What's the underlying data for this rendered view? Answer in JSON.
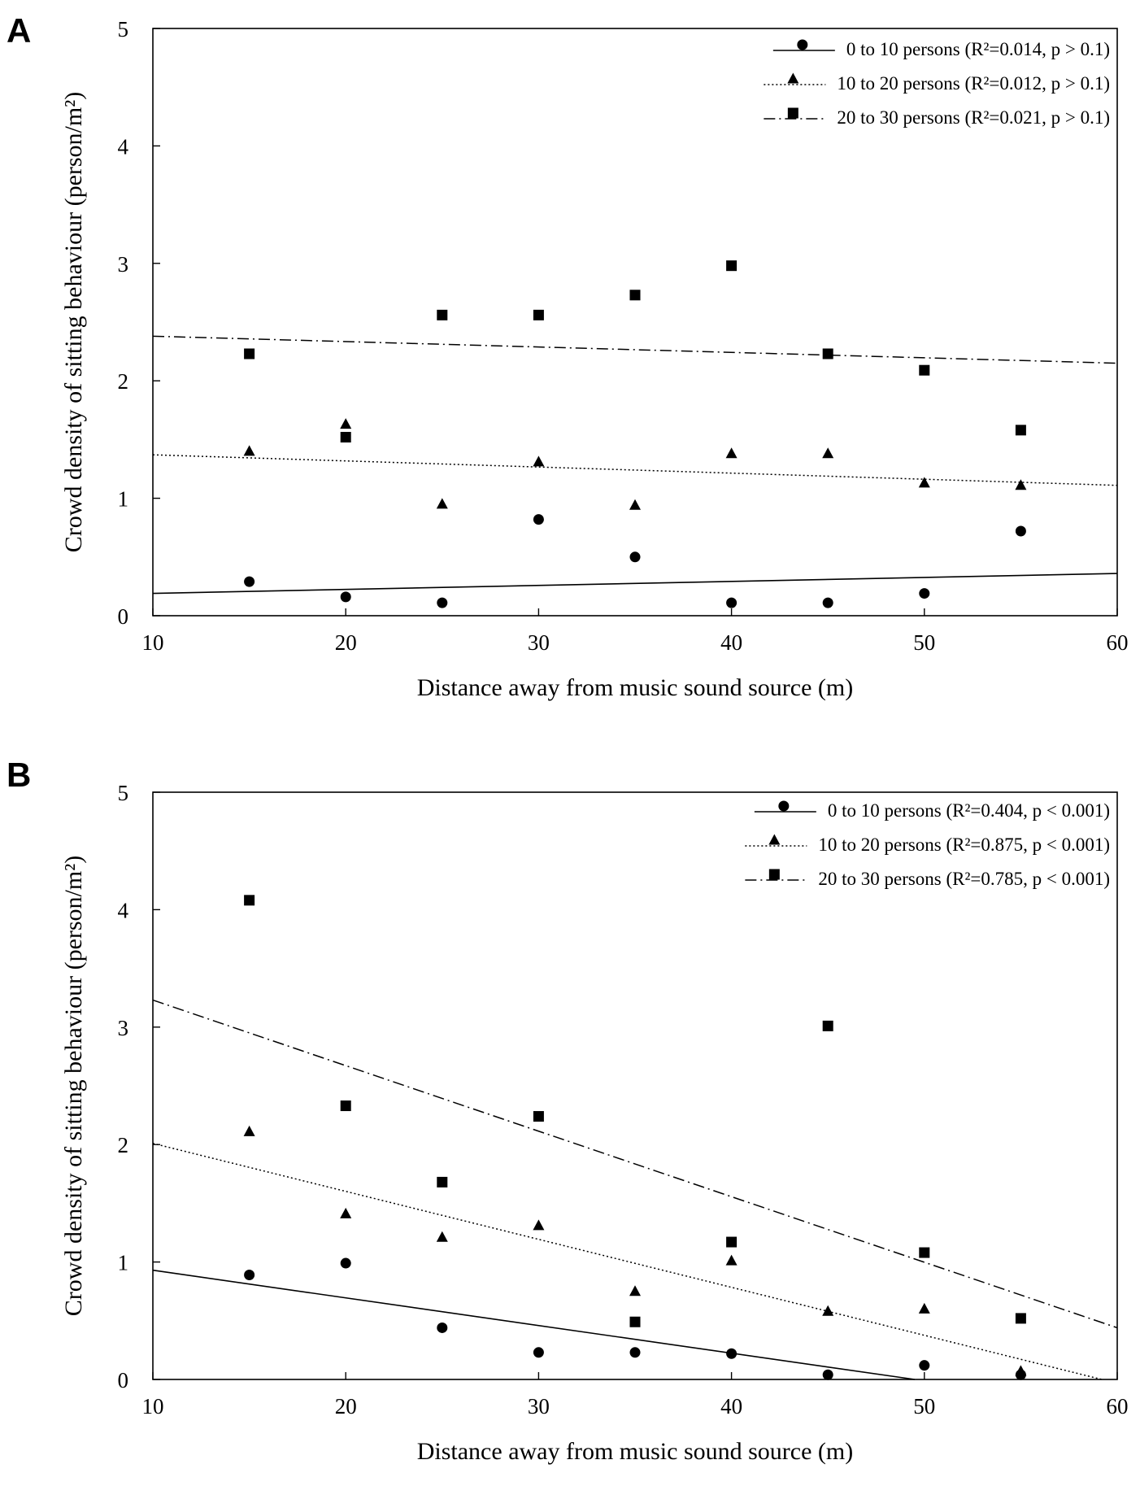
{
  "chart_data": [
    {
      "panel": "A",
      "type": "scatter",
      "xlabel": "Distance away from music sound source (m)",
      "ylabel": "Crowd density of sitting behaviour (person/m²)",
      "xlim": [
        10,
        60
      ],
      "ylim": [
        0,
        5
      ],
      "xticks": [
        10,
        20,
        30,
        40,
        50,
        60
      ],
      "yticks": [
        0,
        1,
        2,
        3,
        4,
        5
      ],
      "legend_position": "top-right",
      "series": [
        {
          "name": "0 to 10 persons",
          "label": "0 to 10  persons",
          "stat": "(R²=0.014, p > 0.1)",
          "r2": "0.014",
          "p": "p > 0.1",
          "marker": "circle",
          "line_style": "solid",
          "x": [
            15,
            20,
            25,
            30,
            35,
            40,
            45,
            50,
            55
          ],
          "y": [
            0.29,
            0.16,
            0.11,
            0.82,
            0.5,
            0.11,
            0.11,
            0.19,
            0.72
          ],
          "fit": {
            "x": [
              10,
              60
            ],
            "y": [
              0.19,
              0.36
            ]
          }
        },
        {
          "name": "10 to 20 persons",
          "label": "10 to 20 persons",
          "stat": "(R²=0.012, p > 0.1)",
          "r2": "0.012",
          "p": "p > 0.1",
          "marker": "triangle",
          "line_style": "dotted",
          "x": [
            15,
            20,
            25,
            30,
            35,
            40,
            45,
            50,
            55
          ],
          "y": [
            1.4,
            1.63,
            0.95,
            1.31,
            0.94,
            1.38,
            1.38,
            1.13,
            1.11
          ],
          "fit": {
            "x": [
              10,
              60
            ],
            "y": [
              1.37,
              1.11
            ]
          }
        },
        {
          "name": "20 to 30 persons",
          "label": "20 to 30 persons",
          "stat": "(R²=0.021, p > 0.1)",
          "r2": "0.021",
          "p": "p > 0.1",
          "marker": "square",
          "line_style": "dashdot",
          "x": [
            15,
            20,
            25,
            30,
            35,
            40,
            45,
            50,
            55
          ],
          "y": [
            2.23,
            1.52,
            2.56,
            2.56,
            2.73,
            2.98,
            2.23,
            2.09,
            1.58
          ],
          "fit": {
            "x": [
              10,
              60
            ],
            "y": [
              2.38,
              2.15
            ]
          }
        }
      ]
    },
    {
      "panel": "B",
      "type": "scatter",
      "xlabel": "Distance away from music sound source (m)",
      "ylabel": "Crowd density of sitting behaviour (person/m²)",
      "xlim": [
        10,
        60
      ],
      "ylim": [
        0,
        5
      ],
      "xticks": [
        10,
        20,
        30,
        40,
        50,
        60
      ],
      "yticks": [
        0,
        1,
        2,
        3,
        4,
        5
      ],
      "legend_position": "top-right",
      "series": [
        {
          "name": "0 to 10 persons",
          "label": "0 to 10  persons",
          "stat": "(R²=0.404, p < 0.001)",
          "r2": "0.404",
          "p": "p < 0.001",
          "marker": "circle",
          "line_style": "solid",
          "x": [
            15,
            20,
            25,
            30,
            35,
            40,
            45,
            50,
            55
          ],
          "y": [
            0.89,
            0.99,
            0.44,
            0.23,
            0.23,
            0.22,
            0.04,
            0.12,
            0.04
          ],
          "fit": {
            "x": [
              10,
              49.5
            ],
            "y": [
              0.93,
              0.0
            ]
          }
        },
        {
          "name": "10 to 20 persons",
          "label": "10 to 20 persons",
          "stat": "(R²=0.875, p < 0.001)",
          "r2": "0.875",
          "p": "p < 0.001",
          "marker": "triangle",
          "line_style": "dotted",
          "x": [
            15,
            20,
            25,
            30,
            35,
            40,
            45,
            50,
            55
          ],
          "y": [
            2.11,
            1.41,
            1.21,
            1.31,
            0.75,
            1.01,
            0.58,
            0.6,
            0.07
          ],
          "fit": {
            "x": [
              10,
              59.2
            ],
            "y": [
              2.01,
              0.0
            ]
          }
        },
        {
          "name": "20 to 30 persons",
          "label": "20 to 30 persons",
          "stat": "(R²=0.785, p < 0.001)",
          "r2": "0.785",
          "p": "p < 0.001",
          "marker": "square",
          "line_style": "dashdot",
          "x": [
            15,
            20,
            25,
            30,
            35,
            40,
            45,
            50,
            55
          ],
          "y": [
            4.08,
            2.33,
            1.68,
            2.24,
            0.49,
            1.17,
            3.01,
            1.08,
            0.52
          ],
          "fit": {
            "x": [
              10,
              60
            ],
            "y": [
              3.23,
              0.44
            ]
          }
        }
      ]
    }
  ]
}
